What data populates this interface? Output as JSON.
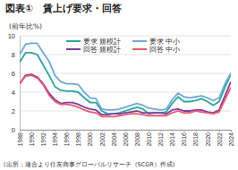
{
  "chart_data": {
    "type": "line",
    "title": "図表①　賃上げ要求・回答",
    "y_label": "(前年比%)",
    "source": "(出所：連合より住友商事グローバルリサーチ（SCGR）作成)",
    "x": [
      1988,
      1989,
      1990,
      1991,
      1992,
      1993,
      1994,
      1995,
      1996,
      1997,
      1998,
      1999,
      2000,
      2001,
      2002,
      2003,
      2004,
      2005,
      2006,
      2007,
      2008,
      2009,
      2010,
      2011,
      2012,
      2013,
      2014,
      2015,
      2016,
      2017,
      2018,
      2019,
      2020,
      2021,
      2022,
      2023,
      2024
    ],
    "series": [
      {
        "name": "要求 規模計",
        "color": "#2aa69a",
        "values": [
          7.2,
          8.2,
          8.2,
          8.0,
          6.9,
          5.8,
          4.6,
          4.2,
          4.1,
          4.1,
          4.0,
          3.4,
          2.9,
          2.9,
          2.0,
          1.7,
          1.7,
          1.8,
          2.0,
          2.2,
          2.4,
          2.2,
          1.7,
          1.8,
          1.8,
          1.9,
          2.8,
          3.5,
          3.0,
          3.0,
          3.1,
          3.3,
          3.0,
          2.6,
          3.0,
          4.5,
          5.9
        ]
      },
      {
        "name": "要求 中小",
        "color": "#6fa8dc",
        "values": [
          8.0,
          9.1,
          9.2,
          9.2,
          8.2,
          7.3,
          5.8,
          5.1,
          4.9,
          4.9,
          4.8,
          4.0,
          3.4,
          3.3,
          2.2,
          2.1,
          2.1,
          2.2,
          2.4,
          2.6,
          2.8,
          2.6,
          2.3,
          2.2,
          2.1,
          2.2,
          3.2,
          3.9,
          3.5,
          3.4,
          3.5,
          3.6,
          3.4,
          3.1,
          3.4,
          4.9,
          6.0
        ]
      },
      {
        "name": "回答 規模計",
        "color": "#7b3f9e",
        "values": [
          4.9,
          5.8,
          5.9,
          5.6,
          4.9,
          3.9,
          3.2,
          2.8,
          2.9,
          2.9,
          2.7,
          2.4,
          2.2,
          2.1,
          1.6,
          1.6,
          1.7,
          1.7,
          1.8,
          1.9,
          2.0,
          1.8,
          1.8,
          1.8,
          1.8,
          1.7,
          2.1,
          2.2,
          2.0,
          2.0,
          2.1,
          2.1,
          1.9,
          1.8,
          2.1,
          3.6,
          5.1
        ]
      },
      {
        "name": "回答 中小",
        "color": "#e85a71",
        "values": [
          4.9,
          5.7,
          5.8,
          5.5,
          4.8,
          3.7,
          3.0,
          2.7,
          2.7,
          2.6,
          2.4,
          2.1,
          1.9,
          1.8,
          1.4,
          1.4,
          1.4,
          1.5,
          1.6,
          1.7,
          1.7,
          1.6,
          1.5,
          1.5,
          1.5,
          1.5,
          1.8,
          2.0,
          1.8,
          1.8,
          2.0,
          1.9,
          1.8,
          1.7,
          1.9,
          3.2,
          4.5
        ]
      }
    ],
    "xlim": [
      1988,
      2024
    ],
    "xticks": [
      1988,
      1990,
      1992,
      1994,
      1996,
      1998,
      2000,
      2002,
      2004,
      2006,
      2008,
      2010,
      2012,
      2014,
      2016,
      2018,
      2020,
      2022,
      2024
    ],
    "ylim": [
      0,
      10
    ],
    "yticks": [
      0,
      2,
      4,
      6,
      8,
      10
    ],
    "grid": true,
    "legend": "upper center"
  }
}
